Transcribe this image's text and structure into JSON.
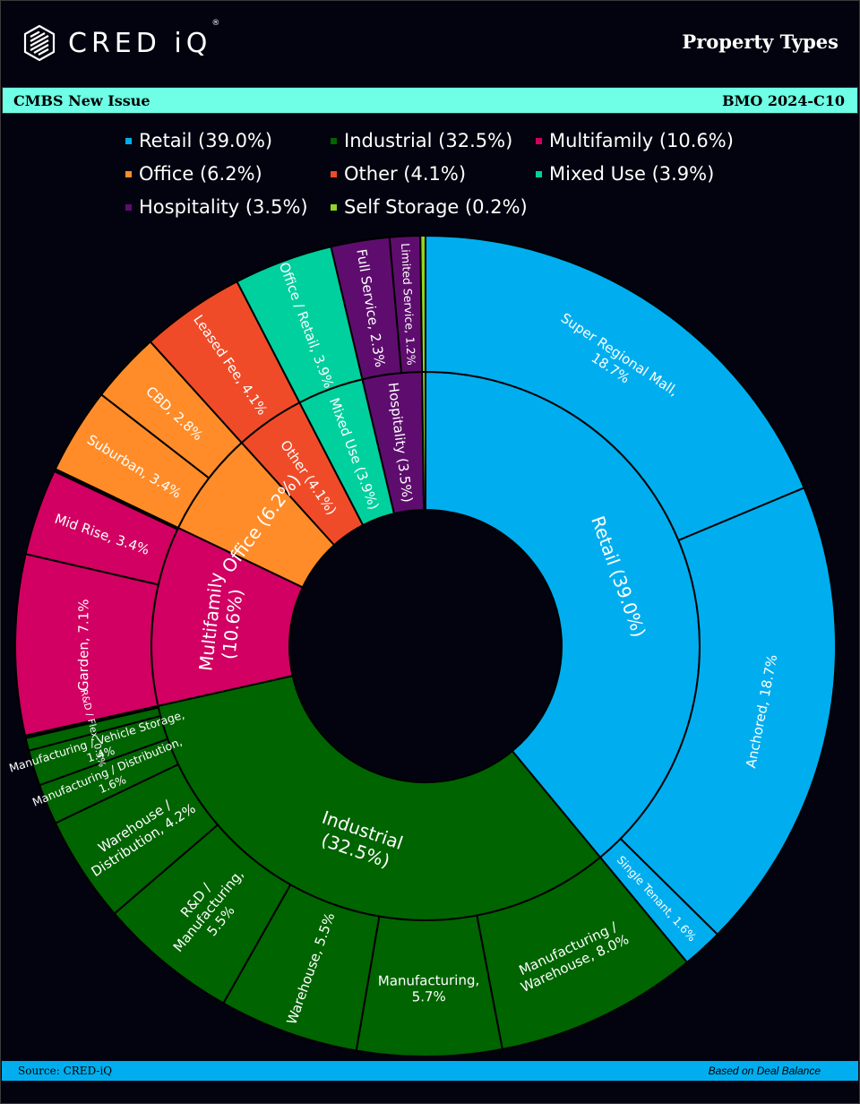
{
  "header": {
    "logo_text": "CRED iQ",
    "logo_mark": "®",
    "title": "Property Types"
  },
  "band": {
    "left": "CMBS New Issue",
    "right": "BMO 2024-C10"
  },
  "footer": {
    "source": "Source:  CRED-iQ",
    "note": "Based on Deal Balance"
  },
  "colors": {
    "retail": "#00aeef",
    "industrial": "#006400",
    "multifamily": "#d10062",
    "office": "#ff8c28",
    "other": "#f04b28",
    "mixed_use": "#00d09e",
    "hospitality": "#5e0d6e",
    "self_storage": "#8fd61f",
    "background": "#03030f"
  },
  "legend": [
    {
      "key": "retail",
      "label": "Retail (39.0%)"
    },
    {
      "key": "industrial",
      "label": "Industrial (32.5%)"
    },
    {
      "key": "multifamily",
      "label": "Multifamily (10.6%)"
    },
    {
      "key": "office",
      "label": "Office (6.2%)"
    },
    {
      "key": "other",
      "label": "Other (4.1%)"
    },
    {
      "key": "mixed_use",
      "label": "Mixed Use (3.9%)"
    },
    {
      "key": "hospitality",
      "label": "Hospitality (3.5%)"
    },
    {
      "key": "self_storage",
      "label": "Self Storage (0.2%)"
    }
  ],
  "chart_data": {
    "type": "sunburst",
    "title": "Property Types",
    "unit": "% of deal balance",
    "categories": [
      {
        "key": "retail",
        "name": "Retail",
        "value": 39.0,
        "label": [
          "Retail (39.0%)"
        ],
        "children": [
          {
            "name": "Super Regional Mall",
            "value": 18.7,
            "label": [
              "Super Regional Mall,",
              "18.7%"
            ]
          },
          {
            "name": "Anchored",
            "value": 18.7,
            "label": [
              "Anchored, 18.7%"
            ]
          },
          {
            "name": "Single Tenant",
            "value": 1.6,
            "label": [
              "Single Tenant, 1.6%"
            ]
          }
        ]
      },
      {
        "key": "industrial",
        "name": "Industrial",
        "value": 32.5,
        "label": [
          "Industrial",
          "(32.5%)"
        ],
        "children": [
          {
            "name": "Manufacturing / Warehouse",
            "value": 8.0,
            "label": [
              "Manufacturing /",
              "Warehouse, 8.0%"
            ]
          },
          {
            "name": "Manufacturing",
            "value": 5.7,
            "label": [
              "Manufacturing,",
              "5.7%"
            ]
          },
          {
            "name": "Warehouse",
            "value": 5.5,
            "label": [
              "Warehouse, 5.5%"
            ]
          },
          {
            "name": "R&D / Manufacturing",
            "value": 5.5,
            "label": [
              "R&D /",
              "Manufacturing,",
              "5.5%"
            ]
          },
          {
            "name": "Warehouse / Distribution",
            "value": 4.2,
            "label": [
              "Warehouse /",
              "Distribution, 4.2%"
            ]
          },
          {
            "name": "Manufacturing / Distribution",
            "value": 1.6,
            "label": [
              "Manufacturing / Distribution,",
              "1.6%"
            ]
          },
          {
            "name": "Manufacturing / Vehicle Storage",
            "value": 1.4,
            "label": [
              "Manufacturing / Vehicle Storage,",
              "1.4%"
            ]
          },
          {
            "name": "R&D / Flex",
            "value": 0.5,
            "label": [
              "R&D / Flex, 0.5%"
            ]
          }
        ]
      },
      {
        "key": "multifamily",
        "name": "Multifamily",
        "value": 10.6,
        "label": [
          "Multifamily",
          "(10.6%)"
        ],
        "children": [
          {
            "name": "Garden",
            "value": 7.1,
            "label": [
              "Garden, 7.1%"
            ]
          },
          {
            "name": "Mid Rise",
            "value": 3.4,
            "label": [
              "Mid Rise, 3.4%"
            ]
          }
        ]
      },
      {
        "key": "office",
        "name": "Office",
        "value": 6.2,
        "label": [
          "Office (6.2%)"
        ],
        "children": [
          {
            "name": "Suburban",
            "value": 3.4,
            "label": [
              "Suburban, 3.4%"
            ]
          },
          {
            "name": "CBD",
            "value": 2.8,
            "label": [
              "CBD, 2.8%"
            ]
          }
        ]
      },
      {
        "key": "other",
        "name": "Other",
        "value": 4.1,
        "label": [
          "Other (4.1%)"
        ],
        "children": [
          {
            "name": "Leased Fee",
            "value": 4.1,
            "label": [
              "Leased Fee, 4.1%"
            ]
          }
        ]
      },
      {
        "key": "mixed_use",
        "name": "Mixed Use",
        "value": 3.9,
        "label": [
          "Mixed Use (3.9%)"
        ],
        "children": [
          {
            "name": "Office / Retail",
            "value": 3.9,
            "label": [
              "Office / Retail, 3.9%"
            ]
          }
        ]
      },
      {
        "key": "hospitality",
        "name": "Hospitality",
        "value": 3.5,
        "label": [
          "Hospitality (3.5%)"
        ],
        "children": [
          {
            "name": "Full Service",
            "value": 2.3,
            "label": [
              "Full Service, 2.3%"
            ]
          },
          {
            "name": "Limited Service",
            "value": 1.2,
            "label": [
              "Limited Service, 1.2%"
            ]
          }
        ]
      },
      {
        "key": "self_storage",
        "name": "Self Storage",
        "value": 0.2,
        "label": [],
        "children": [
          {
            "name": "Self Storage",
            "value": 0.2,
            "label": []
          }
        ]
      }
    ]
  }
}
